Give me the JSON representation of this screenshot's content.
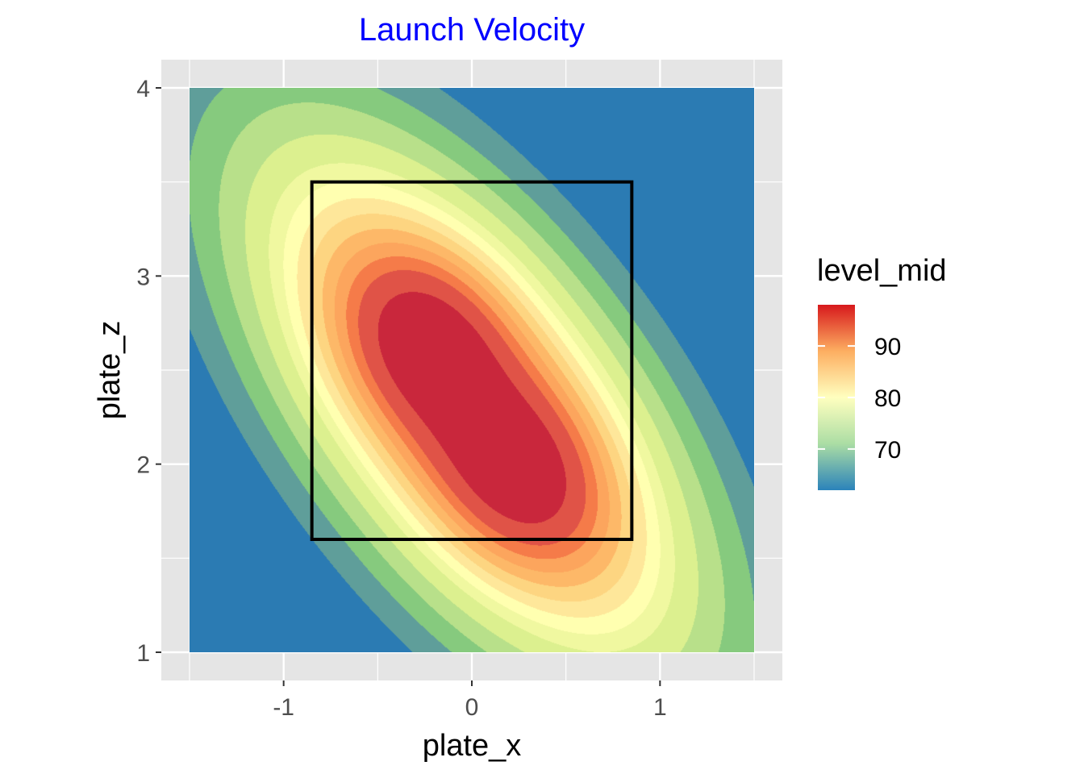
{
  "chart_data": {
    "type": "heatmap",
    "subtype": "filled-contour",
    "title": "Launch Velocity",
    "title_color": "#0000ff",
    "xlabel": "plate_x",
    "ylabel": "plate_z",
    "xlim": [
      -1.65,
      1.65
    ],
    "ylim": [
      0.85,
      4.15
    ],
    "data_extent": {
      "x": [
        -1.5,
        1.5
      ],
      "z": [
        1.0,
        4.0
      ]
    },
    "x_ticks": [
      -1,
      0,
      1
    ],
    "x_tick_labels": [
      "-1",
      "0",
      "1"
    ],
    "y_ticks": [
      1,
      2,
      3,
      4
    ],
    "y_tick_labels": [
      "1",
      "2",
      "3",
      "4"
    ],
    "grid": true,
    "panel_background": "#e5e5e5",
    "colorbar": {
      "title": "level_mid",
      "range": [
        62,
        98
      ],
      "ticks": [
        70,
        80,
        90
      ],
      "tick_labels": [
        "70",
        "80",
        "90"
      ],
      "palette": [
        "#2b83ba",
        "#abdda4",
        "#ffffbf",
        "#fdae61",
        "#d7191c"
      ]
    },
    "contour_levels": [
      62,
      66,
      69,
      72,
      75,
      78,
      80,
      82,
      84,
      86,
      88,
      90,
      92,
      95,
      98
    ],
    "band_colors": [
      "#2b7bb3",
      "#5f9e9a",
      "#86ca7e",
      "#b8e08a",
      "#dcf08f",
      "#f0f8a0",
      "#ffffb0",
      "#fee79a",
      "#fdd581",
      "#fdb868",
      "#fca55d",
      "#f57b49",
      "#e05347",
      "#c9273c"
    ],
    "peaks": [
      {
        "plate_x": -0.28,
        "plate_z": 2.73,
        "launch_velocity": 97
      },
      {
        "plate_x": 0.29,
        "plate_z": 1.87,
        "launch_velocity": 97
      }
    ],
    "strike_zone": {
      "x": [
        -0.85,
        0.85
      ],
      "z": [
        1.6,
        3.5
      ],
      "color": "#000000"
    }
  }
}
